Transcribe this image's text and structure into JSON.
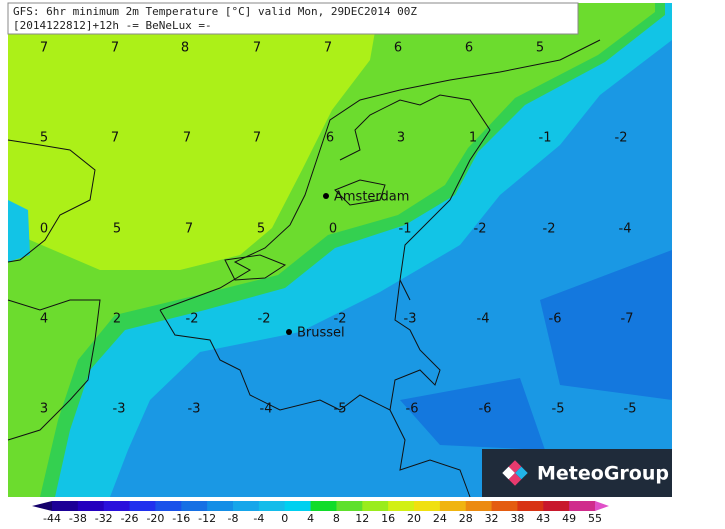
{
  "header": {
    "line1": "GFS: 6hr minimum 2m Temperature [°C] valid Mon, 29DEC2014 00Z",
    "line2": "[2014122812]+12h -= BeNeLux =-"
  },
  "grid": {
    "rows": [
      {
        "values": [
          7,
          7,
          8,
          7,
          7,
          6,
          6,
          5
        ]
      },
      {
        "values": [
          5,
          7,
          7,
          7,
          6,
          3,
          1,
          -1,
          -2
        ]
      },
      {
        "values": [
          0,
          5,
          7,
          5,
          0,
          -1,
          -2,
          -2,
          -4
        ]
      },
      {
        "values": [
          4,
          2,
          -2,
          -2,
          -2,
          -3,
          -4,
          -6,
          -7
        ]
      },
      {
        "values": [
          3,
          -3,
          -3,
          -4,
          -5,
          -6,
          -6,
          -5,
          -5
        ]
      }
    ]
  },
  "cities": [
    {
      "label": "Amsterdam"
    },
    {
      "label": "Brussel"
    }
  ],
  "colorbar": {
    "labels": [
      -44,
      -38,
      -32,
      -26,
      -20,
      -16,
      -12,
      -8,
      -4,
      0,
      4,
      8,
      12,
      16,
      20,
      24,
      28,
      32,
      38,
      43,
      49,
      55
    ],
    "colors": [
      "#14006a",
      "#1c0096",
      "#2400be",
      "#2a10dc",
      "#2030ee",
      "#1a52ea",
      "#1670e4",
      "#148ee6",
      "#16a6ea",
      "#14bcea",
      "#00d0f0",
      "#10dc2a",
      "#5ee02c",
      "#9aec1c",
      "#d2f014",
      "#f0e010",
      "#f0b410",
      "#ec8a10",
      "#e45c10",
      "#d83414",
      "#c8182c",
      "#d02c8c",
      "#e050c8"
    ]
  },
  "logo": {
    "text": "MeteoGroup"
  }
}
